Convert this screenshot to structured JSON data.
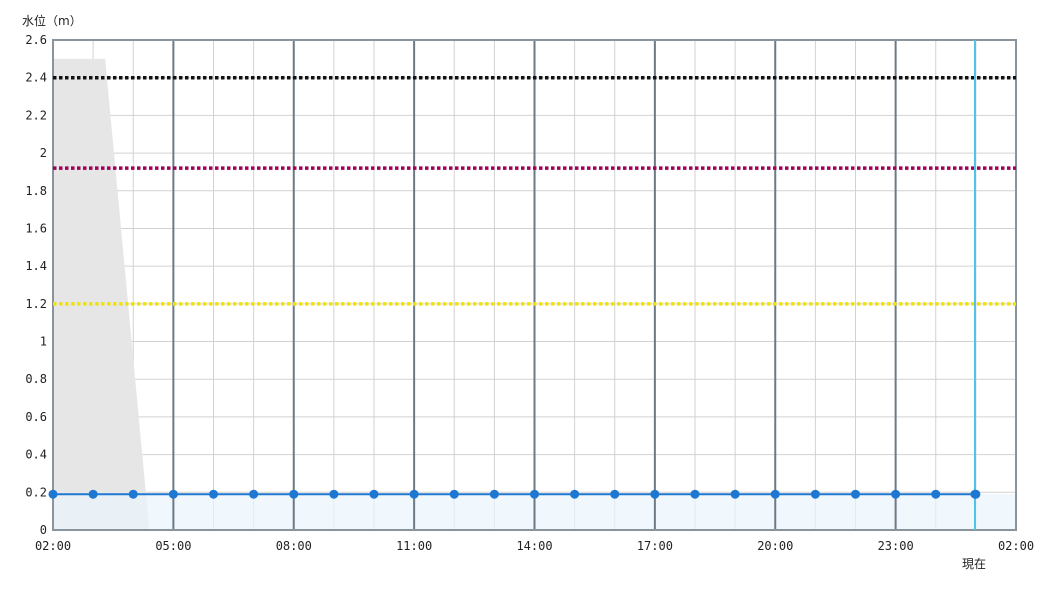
{
  "chart_data": {
    "type": "line",
    "ylabel": "水位（m）",
    "ylim": [
      0,
      2.6
    ],
    "yticks": [
      "0",
      "0.2",
      "0.4",
      "0.6",
      "0.8",
      "1",
      "1.2",
      "1.4",
      "1.6",
      "1.8",
      "2",
      "2.2",
      "2.4",
      "2.6"
    ],
    "xticks": [
      "02:00",
      "05:00",
      "08:00",
      "11:00",
      "14:00",
      "17:00",
      "20:00",
      "23:00",
      "02:00"
    ],
    "now_label": "現在",
    "now_hour": 24,
    "grid": true,
    "thresholds": [
      {
        "value": 2.4,
        "color": "#111111"
      },
      {
        "value": 1.92,
        "color": "#a0005a"
      },
      {
        "value": 1.2,
        "color": "#f2e400"
      }
    ],
    "grey_band": {
      "color": "#e6e6e6",
      "points": [
        [
          0,
          2.5
        ],
        [
          1.3,
          2.5
        ],
        [
          2.4,
          0
        ]
      ]
    },
    "series": [
      {
        "color": "#1e78d2",
        "x": [
          0,
          1,
          2,
          3,
          4,
          5,
          6,
          7,
          8,
          9,
          10,
          11,
          12,
          13,
          14,
          15,
          16,
          17,
          18,
          19,
          20,
          21,
          22,
          23
        ],
        "values": [
          0.19,
          0.19,
          0.19,
          0.19,
          0.19,
          0.19,
          0.19,
          0.19,
          0.19,
          0.19,
          0.19,
          0.19,
          0.19,
          0.19,
          0.19,
          0.19,
          0.19,
          0.19,
          0.19,
          0.19,
          0.19,
          0.19,
          0.19,
          0.19
        ]
      }
    ]
  }
}
